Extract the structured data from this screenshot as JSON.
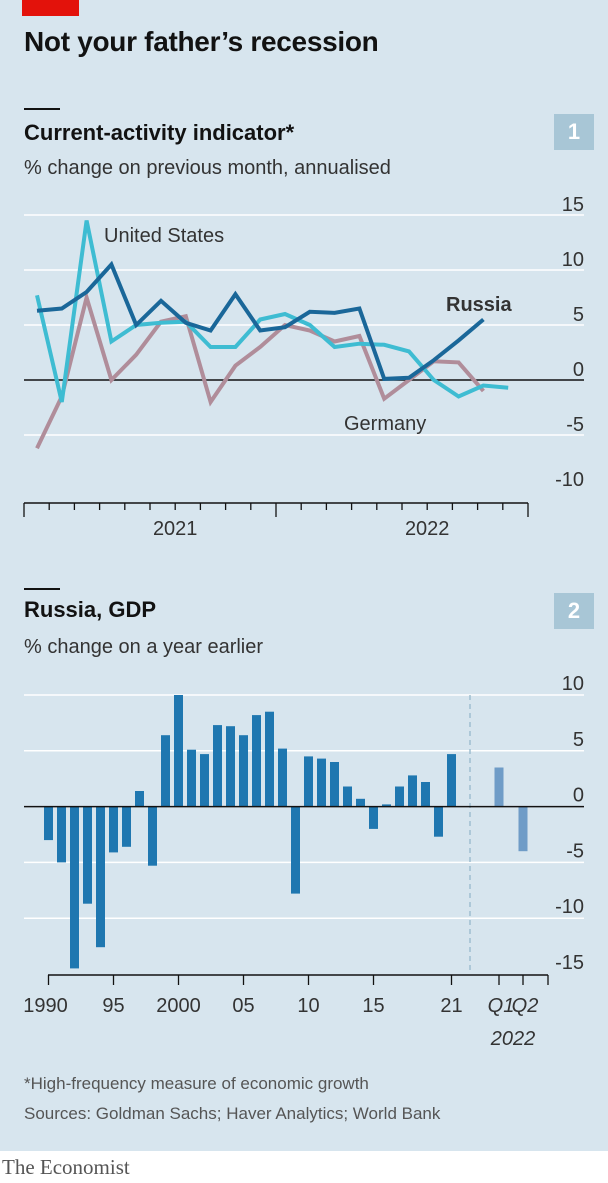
{
  "title": "Not your father’s recession",
  "panel1": {
    "title": "Current-activity indicator*",
    "subtitle": "% change on previous month, annualised",
    "badge": "1"
  },
  "panel2": {
    "title": "Russia, GDP",
    "subtitle": "% change on a year earlier",
    "badge": "2"
  },
  "footnote": "*High-frequency measure of economic growth",
  "sources": "Sources: Goldman Sachs; Haver Analytics; World Bank",
  "brand": "The Economist",
  "colors": {
    "background": "#d7e5ee",
    "russia": "#1a6799",
    "us": "#3ebcd2",
    "germany": "#b08d9a",
    "gdp_bar": "#1f77b0",
    "forecast_bar": "#6f9cc7",
    "brand_red": "#e3120b"
  },
  "chart_data": [
    {
      "type": "line",
      "x_ticks": [
        "2021",
        "2022"
      ],
      "y_ticks": [
        -10,
        -5,
        0,
        5,
        10,
        15
      ],
      "ylim": [
        -10,
        15
      ],
      "grid": true,
      "series": [
        {
          "name": "United States",
          "color": "#3ebcd2",
          "x": [
            "2020-08",
            "2020-09",
            "2020-10",
            "2020-11",
            "2020-12",
            "2021-01",
            "2021-02",
            "2021-03",
            "2021-04",
            "2021-05",
            "2021-06",
            "2021-07",
            "2021-08",
            "2021-09",
            "2021-10",
            "2021-11",
            "2021-12",
            "2022-01",
            "2022-02",
            "2022-03",
            "2022-04",
            "2022-05"
          ],
          "values": [
            7.7,
            -2.0,
            14.5,
            3.5,
            5.0,
            5.2,
            5.3,
            3.0,
            3.0,
            5.5,
            6.0,
            5.0,
            3.0,
            3.3,
            3.2,
            2.6,
            0.0,
            -1.5,
            -0.5,
            -0.7,
            null,
            null
          ]
        },
        {
          "name": "Russia",
          "color": "#1a6799",
          "x": [
            "2020-08",
            "2020-09",
            "2020-10",
            "2020-11",
            "2020-12",
            "2021-01",
            "2021-02",
            "2021-03",
            "2021-04",
            "2021-05",
            "2021-06",
            "2021-07",
            "2021-08",
            "2021-09",
            "2021-10",
            "2021-11",
            "2021-12",
            "2022-01",
            "2022-02",
            "2022-03",
            "2022-04",
            "2022-05"
          ],
          "values": [
            6.3,
            6.5,
            8.0,
            10.5,
            5.0,
            7.2,
            5.2,
            4.5,
            7.8,
            4.5,
            4.8,
            6.2,
            6.1,
            6.5,
            0.1,
            0.2,
            1.8,
            3.6,
            5.5,
            null,
            null,
            null
          ]
        },
        {
          "name": "Germany",
          "color": "#b08d9a",
          "x": [
            "2020-08",
            "2020-09",
            "2020-10",
            "2020-11",
            "2020-12",
            "2021-01",
            "2021-02",
            "2021-03",
            "2021-04",
            "2021-05",
            "2021-06",
            "2021-07",
            "2021-08",
            "2021-09",
            "2021-10",
            "2021-11",
            "2021-12",
            "2022-01",
            "2022-02",
            "2022-03",
            "2022-04",
            "2022-05"
          ],
          "values": [
            -6.2,
            -1.5,
            7.5,
            0.0,
            2.3,
            5.3,
            5.8,
            -2.0,
            1.3,
            3.0,
            5.0,
            4.5,
            3.5,
            4.0,
            -1.7,
            0.0,
            1.7,
            1.6,
            -1.0,
            null,
            null,
            null
          ]
        }
      ],
      "labels": {
        "us": "United States",
        "russia": "Russia",
        "germany": "Germany"
      }
    },
    {
      "type": "bar",
      "series_name": "Russia, GDP",
      "x_labels": [
        "1990",
        "95",
        "2000",
        "05",
        "10",
        "15",
        "21",
        "Q1",
        "Q2"
      ],
      "x_sublabel": "2022",
      "y_ticks": [
        -15,
        -10,
        -5,
        0,
        5,
        10
      ],
      "ylim": [
        -15,
        10
      ],
      "grid": true,
      "categories": [
        1990,
        1991,
        1992,
        1993,
        1994,
        1995,
        1996,
        1997,
        1998,
        1999,
        2000,
        2001,
        2002,
        2003,
        2004,
        2005,
        2006,
        2007,
        2008,
        2009,
        2010,
        2011,
        2012,
        2013,
        2014,
        2015,
        2016,
        2017,
        2018,
        2019,
        2020,
        2021
      ],
      "values": [
        -3.0,
        -5.0,
        -14.5,
        -8.7,
        -12.6,
        -4.1,
        -3.6,
        1.4,
        -5.3,
        6.4,
        10.0,
        5.1,
        4.7,
        7.3,
        7.2,
        6.4,
        8.2,
        8.5,
        5.2,
        -7.8,
        4.5,
        4.3,
        4.0,
        1.8,
        0.7,
        -2.0,
        0.2,
        1.8,
        2.8,
        2.2,
        -2.7,
        4.7
      ],
      "forecast": [
        {
          "label": "Q1",
          "value": 3.5
        },
        {
          "label": "Q2",
          "value": -4.0
        }
      ]
    }
  ]
}
